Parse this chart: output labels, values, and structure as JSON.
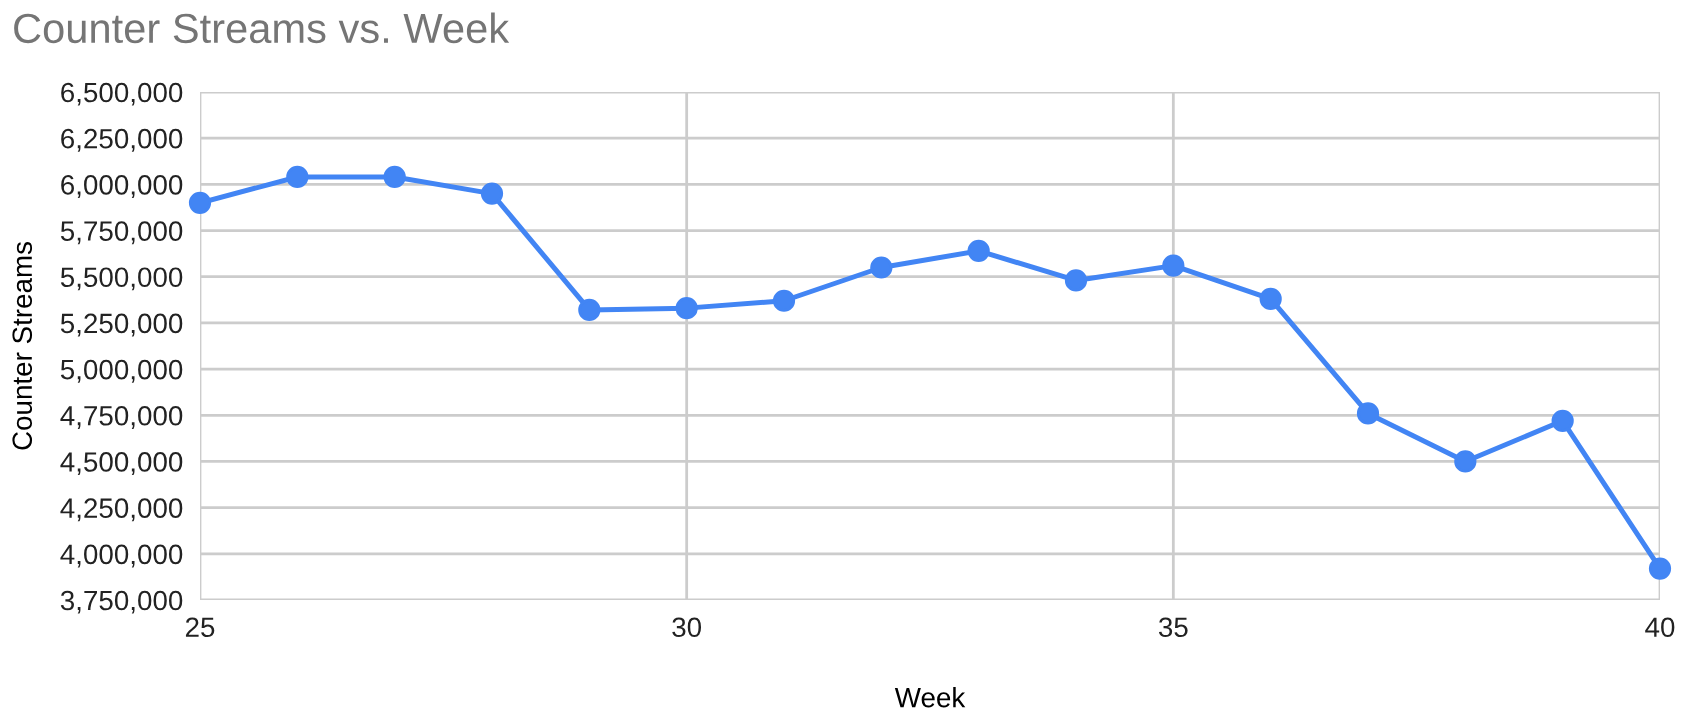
{
  "chart_data": {
    "type": "line",
    "title": "Counter Streams vs. Week",
    "xlabel": "Week",
    "ylabel": "Counter Streams",
    "x": [
      25,
      26,
      27,
      28,
      29,
      30,
      31,
      32,
      33,
      34,
      35,
      36,
      37,
      38,
      39,
      40
    ],
    "series": [
      {
        "color": "#4285f4",
        "values": [
          5900000,
          6040000,
          6040000,
          5950000,
          5320000,
          5330000,
          5370000,
          5550000,
          5640000,
          5480000,
          5560000,
          5380000,
          4760000,
          4500000,
          4720000,
          3920000
        ]
      }
    ],
    "xlim": [
      25,
      40
    ],
    "xticks": [
      25,
      30,
      35,
      40
    ],
    "ylim": [
      3750000,
      6500000
    ],
    "yticks": [
      {
        "value": 3750000,
        "label": "3,750,000"
      },
      {
        "value": 4000000,
        "label": "4,000,000"
      },
      {
        "value": 4250000,
        "label": "4,250,000"
      },
      {
        "value": 4500000,
        "label": "4,500,000"
      },
      {
        "value": 4750000,
        "label": "4,750,000"
      },
      {
        "value": 5000000,
        "label": "5,000,000"
      },
      {
        "value": 5250000,
        "label": "5,250,000"
      },
      {
        "value": 5500000,
        "label": "5,500,000"
      },
      {
        "value": 5750000,
        "label": "5,750,000"
      },
      {
        "value": 6000000,
        "label": "6,000,000"
      },
      {
        "value": 6250000,
        "label": "6,250,000"
      },
      {
        "value": 6500000,
        "label": "6,500,000"
      }
    ],
    "grid": true,
    "marker": "circle",
    "line_style": "solid"
  }
}
